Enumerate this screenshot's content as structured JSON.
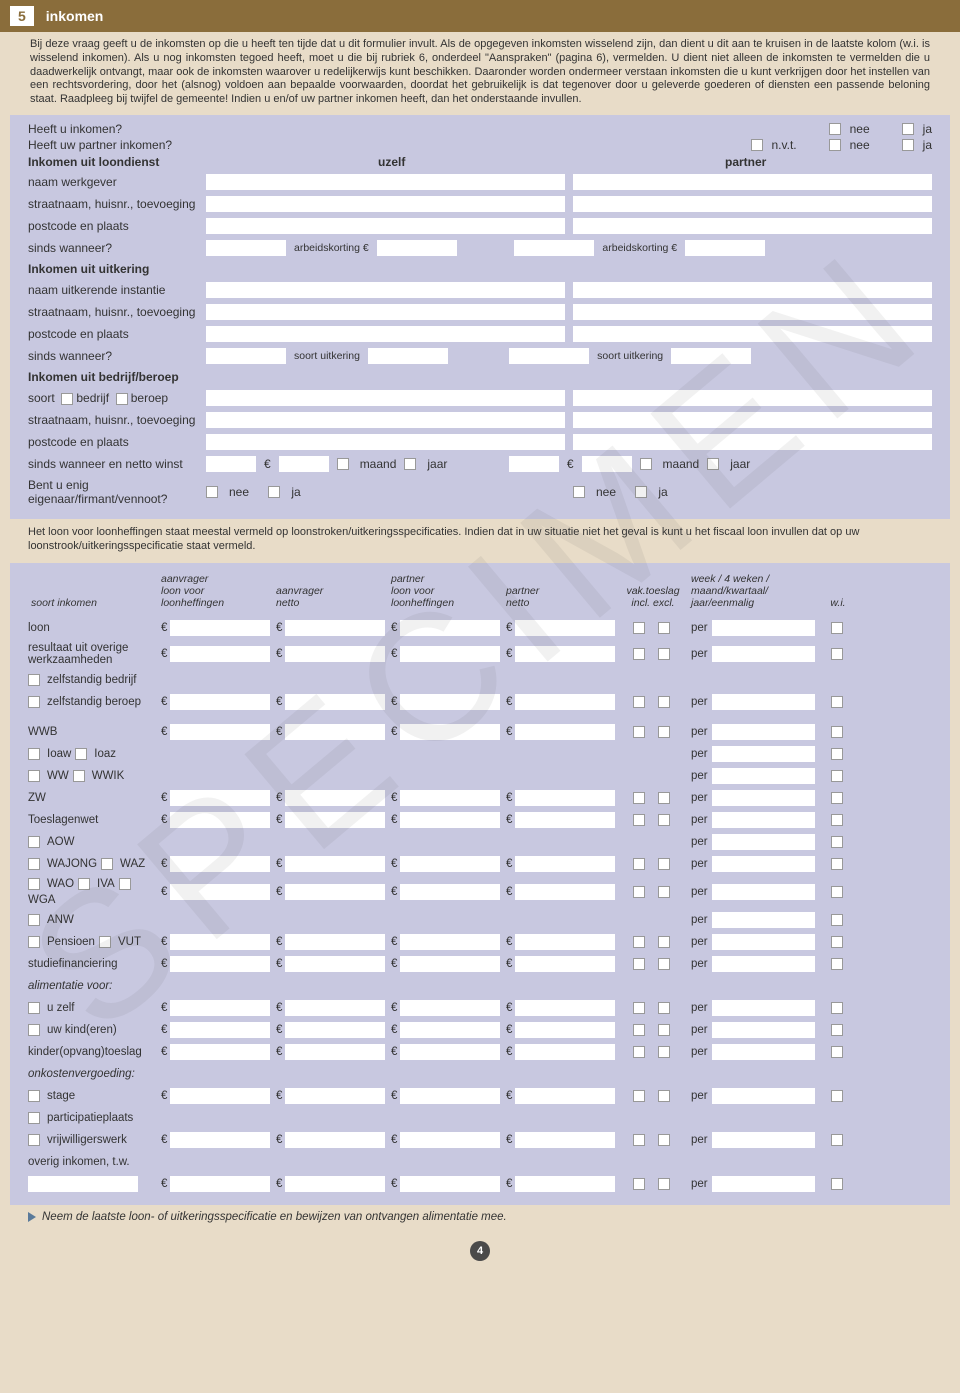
{
  "header": {
    "num": "5",
    "title": "inkomen"
  },
  "intro": "Bij deze vraag geeft u de inkomsten op die u heeft ten tijde dat u dit formulier invult. Als de opgegeven inkomsten wisselend zijn, dan dient u dit aan te kruisen in de laatste kolom (w.i. is wisselend inkomen). Als u nog inkomsten tegoed heeft, moet u die bij rubriek 6, onderdeel \"Aanspraken\" (pagina 6), vermelden. U dient niet alleen de inkomsten te vermelden die u daadwerkelijk ontvangt, maar ook de inkomsten waarover u redelijkerwijs kunt beschikken. Daaronder worden ondermeer verstaan inkomsten die u kunt verkrijgen door het instellen van een rechtsvordering, door het (alsnog) voldoen aan bepaalde voorwaarden, doordat het gebruikelijk is dat tegenover door u geleverde goederen of diensten een passende beloning staat. Raadpleeg bij twijfel de gemeente! Indien u en/of uw partner inkomen heeft, dan het onderstaande invullen.",
  "q1": {
    "label": "Heeft u inkomen?",
    "nee": "nee",
    "ja": "ja"
  },
  "q2": {
    "label": "Heeft uw partner inkomen?",
    "nvt": "n.v.t.",
    "nee": "nee",
    "ja": "ja"
  },
  "sec1": {
    "title": "Inkomen uit loondienst",
    "uzelf": "uzelf",
    "partner": "partner"
  },
  "rows": {
    "werkgever": "naam werkgever",
    "straat": "straatnaam, huisnr., toevoeging",
    "postcode": "postcode en plaats",
    "sinds": "sinds wanneer?",
    "arbeidskorting": "arbeidskorting €"
  },
  "sec2": {
    "title": "Inkomen uit uitkering"
  },
  "rows2": {
    "instantie": "naam uitkerende instantie",
    "soort_uitkering": "soort uitkering"
  },
  "sec3": {
    "title": "Inkomen uit bedrijf/beroep"
  },
  "rows3": {
    "soort": "soort",
    "bedrijf": "bedrijf",
    "beroep": "beroep",
    "winst": "sinds wanneer en netto winst",
    "maand": "maand",
    "jaar": "jaar",
    "eigenaar": "Bent u enig eigenaar/firmant/vennoot?",
    "nee": "nee",
    "ja": "ja"
  },
  "note": "Het loon voor loonheffingen staat meestal vermeld op loonstroken/uitkeringsspecificaties. Indien dat in uw situatie niet het geval is kunt u het fiscaal loon invullen dat op uw loonstrook/uitkeringsspecificatie staat vermeld.",
  "thead": {
    "soort": "soort inkomen",
    "aanvrager_lh": "aanvrager\nloon voor loonheffingen",
    "aanvrager_netto": "aanvrager\nnetto",
    "partner_lh": "partner\nloon voor loonheffingen",
    "partner_netto": "partner\nnetto",
    "vak": "vak.toeslag\nincl.   excl.",
    "periode": "week / 4 weken /\nmaand/kwartaal/\njaar/eenmalig",
    "wi": "w.i."
  },
  "table_rows": [
    {
      "label": "loon",
      "amounts": true
    },
    {
      "label": "resultaat uit overige werkzaamheden",
      "amounts": true,
      "multi": true
    },
    {
      "checks": [
        "zelfstandig bedrijf"
      ],
      "no_row": true
    },
    {
      "checks": [
        "zelfstandig beroep"
      ],
      "amounts": true
    },
    {
      "label": "WWB",
      "amounts": true,
      "gap": true
    },
    {
      "checks": [
        "Ioaw",
        "Ioaz"
      ],
      "amounts": false,
      "per_only": true
    },
    {
      "checks": [
        "WW",
        "WWIK"
      ],
      "amounts": false,
      "per_only": true
    },
    {
      "label": "ZW",
      "amounts": true
    },
    {
      "label": "Toeslagenwet",
      "amounts": true
    },
    {
      "checks": [
        "AOW"
      ],
      "amounts": false,
      "per_only": true
    },
    {
      "checks": [
        "WAJONG",
        "WAZ"
      ],
      "amounts": true
    },
    {
      "checks": [
        "WAO",
        "IVA",
        "WGA"
      ],
      "amounts": true
    },
    {
      "checks": [
        "ANW"
      ],
      "amounts": false,
      "per_only": true
    },
    {
      "checks": [
        "Pensioen",
        "VUT"
      ],
      "amounts": true
    },
    {
      "label": "studiefinanciering",
      "amounts": true
    },
    {
      "label_italic": "alimentatie voor:",
      "no_row": true
    },
    {
      "checks": [
        "u zelf"
      ],
      "amounts": true
    },
    {
      "checks": [
        "uw kind(eren)"
      ],
      "amounts": true
    },
    {
      "label": "kinder(opvang)toeslag",
      "amounts": true
    },
    {
      "label_italic": "onkostenvergoeding:",
      "no_row": true
    },
    {
      "checks": [
        "stage"
      ],
      "amounts": true
    },
    {
      "checks": [
        "participatieplaats"
      ],
      "no_row": true
    },
    {
      "checks": [
        "vrijwilligerswerk"
      ],
      "amounts": true
    },
    {
      "label": "overig inkomen, t.w.",
      "no_row": true
    },
    {
      "label": "",
      "amounts": true,
      "blank_label": true
    }
  ],
  "per": "per",
  "euro": "€",
  "footer": "Neem de laatste loon- of uitkeringsspecificatie en bewijzen van ontvangen alimentatie mee.",
  "page": "4",
  "watermark": "SPECIMEN"
}
